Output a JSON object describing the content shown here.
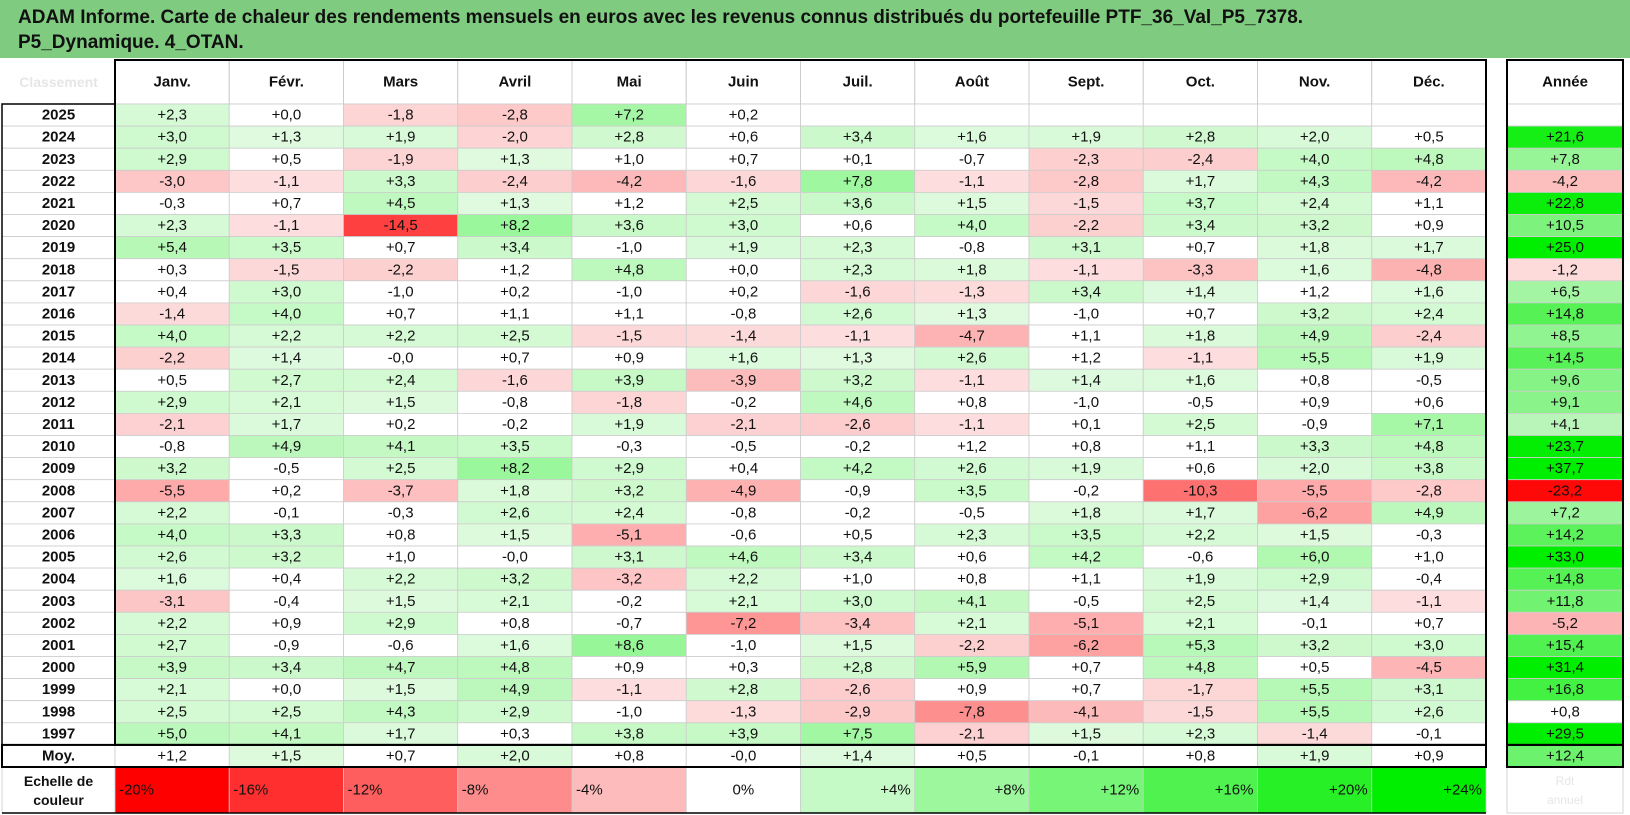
{
  "title_lines": [
    "ADAM Informe. Carte de chaleur des rendements mensuels en euros avec les revenus connus distribués du portefeuille PTF_36_Val_P5_7378.",
    "P5_Dynamique. 4_OTAN."
  ],
  "colors": {
    "title_bg": "#7fcb7f",
    "positive_max": "#00ee00",
    "negative_max": "#ff0000",
    "neutral": "#ffffff"
  },
  "chart_data": {
    "type": "heatmap",
    "corner_label": "Classement",
    "months": [
      "Janv.",
      "Févr.",
      "Mars",
      "Avril",
      "Mai",
      "Juin",
      "Juil.",
      "Août",
      "Sept.",
      "Oct.",
      "Nov.",
      "Déc."
    ],
    "year_header": "Année",
    "rows": [
      {
        "year": "2025",
        "values": [
          "+2,3",
          "+0,0",
          "-1,8",
          "-2,8",
          "+7,2",
          "+0,2",
          "",
          "",
          "",
          "",
          "",
          ""
        ],
        "annual": ""
      },
      {
        "year": "2024",
        "values": [
          "+3,0",
          "+1,3",
          "+1,9",
          "-2,0",
          "+2,8",
          "+0,6",
          "+3,4",
          "+1,6",
          "+1,9",
          "+2,8",
          "+2,0",
          "+0,5"
        ],
        "annual": "+21,6"
      },
      {
        "year": "2023",
        "values": [
          "+2,9",
          "+0,5",
          "-1,9",
          "+1,3",
          "+1,0",
          "+0,7",
          "+0,1",
          "-0,7",
          "-2,3",
          "-2,4",
          "+4,0",
          "+4,8"
        ],
        "annual": "+7,8"
      },
      {
        "year": "2022",
        "values": [
          "-3,0",
          "-1,1",
          "+3,3",
          "-2,4",
          "-4,2",
          "-1,6",
          "+7,8",
          "-1,1",
          "-2,8",
          "+1,7",
          "+4,3",
          "-4,2"
        ],
        "annual": "-4,2"
      },
      {
        "year": "2021",
        "values": [
          "-0,3",
          "+0,7",
          "+4,5",
          "+1,3",
          "+1,2",
          "+2,5",
          "+3,6",
          "+1,5",
          "-1,5",
          "+3,7",
          "+2,4",
          "+1,1"
        ],
        "annual": "+22,8"
      },
      {
        "year": "2020",
        "values": [
          "+2,3",
          "-1,1",
          "-14,5",
          "+8,2",
          "+3,6",
          "+3,0",
          "+0,6",
          "+4,0",
          "-2,2",
          "+3,4",
          "+3,2",
          "+0,9"
        ],
        "annual": "+10,5"
      },
      {
        "year": "2019",
        "values": [
          "+5,4",
          "+3,5",
          "+0,7",
          "+3,4",
          "-1,0",
          "+1,9",
          "+2,3",
          "-0,8",
          "+3,1",
          "+0,7",
          "+1,8",
          "+1,7"
        ],
        "annual": "+25,0"
      },
      {
        "year": "2018",
        "values": [
          "+0,3",
          "-1,5",
          "-2,2",
          "+1,2",
          "+4,8",
          "+0,0",
          "+2,3",
          "+1,8",
          "-1,1",
          "-3,3",
          "+1,6",
          "-4,8"
        ],
        "annual": "-1,2"
      },
      {
        "year": "2017",
        "values": [
          "+0,4",
          "+3,0",
          "-1,0",
          "+0,2",
          "-1,0",
          "+0,2",
          "-1,6",
          "-1,3",
          "+3,4",
          "+1,4",
          "+1,2",
          "+1,6"
        ],
        "annual": "+6,5"
      },
      {
        "year": "2016",
        "values": [
          "-1,4",
          "+4,0",
          "+0,7",
          "+1,1",
          "+1,1",
          "-0,8",
          "+2,6",
          "+1,3",
          "-1,0",
          "+0,7",
          "+3,2",
          "+2,4"
        ],
        "annual": "+14,8"
      },
      {
        "year": "2015",
        "values": [
          "+4,0",
          "+2,2",
          "+2,2",
          "+2,5",
          "-1,5",
          "-1,4",
          "-1,1",
          "-4,7",
          "+1,1",
          "+1,8",
          "+4,9",
          "-2,4"
        ],
        "annual": "+8,5"
      },
      {
        "year": "2014",
        "values": [
          "-2,2",
          "+1,4",
          "-0,0",
          "+0,7",
          "+0,9",
          "+1,6",
          "+1,3",
          "+2,6",
          "+1,2",
          "-1,1",
          "+5,5",
          "+1,9"
        ],
        "annual": "+14,5"
      },
      {
        "year": "2013",
        "values": [
          "+0,5",
          "+2,7",
          "+2,4",
          "-1,6",
          "+3,9",
          "-3,9",
          "+3,2",
          "-1,1",
          "+1,4",
          "+1,6",
          "+0,8",
          "-0,5"
        ],
        "annual": "+9,6"
      },
      {
        "year": "2012",
        "values": [
          "+2,9",
          "+2,1",
          "+1,5",
          "-0,8",
          "-1,8",
          "-0,2",
          "+4,6",
          "+0,8",
          "-1,0",
          "-0,5",
          "+0,9",
          "+0,6"
        ],
        "annual": "+9,1"
      },
      {
        "year": "2011",
        "values": [
          "-2,1",
          "+1,7",
          "+0,2",
          "-0,2",
          "+1,9",
          "-2,1",
          "-2,6",
          "-1,1",
          "+0,1",
          "+2,5",
          "-0,9",
          "+7,1"
        ],
        "annual": "+4,1"
      },
      {
        "year": "2010",
        "values": [
          "-0,8",
          "+4,9",
          "+4,1",
          "+3,5",
          "-0,3",
          "-0,5",
          "-0,2",
          "+1,2",
          "+0,8",
          "+1,1",
          "+3,3",
          "+4,8"
        ],
        "annual": "+23,7"
      },
      {
        "year": "2009",
        "values": [
          "+3,2",
          "-0,5",
          "+2,5",
          "+8,2",
          "+2,9",
          "+0,4",
          "+4,2",
          "+2,6",
          "+1,9",
          "+0,6",
          "+2,0",
          "+3,8"
        ],
        "annual": "+37,7"
      },
      {
        "year": "2008",
        "values": [
          "-5,5",
          "+0,2",
          "-3,7",
          "+1,8",
          "+3,2",
          "-4,9",
          "-0,9",
          "+3,5",
          "-0,2",
          "-10,3",
          "-5,5",
          "-2,8"
        ],
        "annual": "-23,2"
      },
      {
        "year": "2007",
        "values": [
          "+2,2",
          "-0,1",
          "-0,3",
          "+2,6",
          "+2,4",
          "-0,8",
          "-0,2",
          "-0,5",
          "+1,8",
          "+1,7",
          "-6,2",
          "+4,9"
        ],
        "annual": "+7,2"
      },
      {
        "year": "2006",
        "values": [
          "+4,0",
          "+3,3",
          "+0,8",
          "+1,5",
          "-5,1",
          "-0,6",
          "+0,5",
          "+2,3",
          "+3,5",
          "+2,2",
          "+1,5",
          "-0,3"
        ],
        "annual": "+14,2"
      },
      {
        "year": "2005",
        "values": [
          "+2,6",
          "+3,2",
          "+1,0",
          "-0,0",
          "+3,1",
          "+4,6",
          "+3,4",
          "+0,6",
          "+4,2",
          "-0,6",
          "+6,0",
          "+1,0"
        ],
        "annual": "+33,0"
      },
      {
        "year": "2004",
        "values": [
          "+1,6",
          "+0,4",
          "+2,2",
          "+3,2",
          "-3,2",
          "+2,2",
          "+1,0",
          "+0,8",
          "+1,1",
          "+1,9",
          "+2,9",
          "-0,4"
        ],
        "annual": "+14,8"
      },
      {
        "year": "2003",
        "values": [
          "-3,1",
          "-0,4",
          "+1,5",
          "+2,1",
          "-0,2",
          "+2,1",
          "+3,0",
          "+4,1",
          "-0,5",
          "+2,5",
          "+1,4",
          "-1,1"
        ],
        "annual": "+11,8"
      },
      {
        "year": "2002",
        "values": [
          "+2,2",
          "+0,9",
          "+2,9",
          "+0,8",
          "-0,7",
          "-7,2",
          "-3,4",
          "+2,1",
          "-5,1",
          "+2,1",
          "-0,1",
          "+0,7"
        ],
        "annual": "-5,2"
      },
      {
        "year": "2001",
        "values": [
          "+2,7",
          "-0,9",
          "-0,6",
          "+1,6",
          "+8,6",
          "-1,0",
          "+1,5",
          "-2,2",
          "-6,2",
          "+5,3",
          "+3,2",
          "+3,0"
        ],
        "annual": "+15,4"
      },
      {
        "year": "2000",
        "values": [
          "+3,9",
          "+3,4",
          "+4,7",
          "+4,8",
          "+0,9",
          "+0,3",
          "+2,8",
          "+5,9",
          "+0,7",
          "+4,8",
          "+0,5",
          "-4,5"
        ],
        "annual": "+31,4"
      },
      {
        "year": "1999",
        "values": [
          "+2,1",
          "+0,0",
          "+1,5",
          "+4,9",
          "-1,1",
          "+2,8",
          "-2,6",
          "+0,9",
          "+0,7",
          "-1,7",
          "+5,5",
          "+3,1"
        ],
        "annual": "+16,8"
      },
      {
        "year": "1998",
        "values": [
          "+2,5",
          "+2,5",
          "+4,3",
          "+2,9",
          "-1,0",
          "-1,3",
          "-2,9",
          "-7,8",
          "-4,1",
          "-1,5",
          "+5,5",
          "+2,6"
        ],
        "annual": "+0,8"
      },
      {
        "year": "1997",
        "values": [
          "+5,0",
          "+4,1",
          "+1,7",
          "+0,3",
          "+3,8",
          "+3,9",
          "+7,5",
          "-2,1",
          "+1,5",
          "+2,3",
          "-1,4",
          "-0,1"
        ],
        "annual": "+29,5"
      }
    ],
    "average_row": {
      "label": "Moy.",
      "values": [
        "+1,2",
        "+1,5",
        "+0,7",
        "+2,0",
        "+0,8",
        "-0,0",
        "+1,4",
        "+0,5",
        "-0,1",
        "+0,8",
        "+1,9",
        "+0,9"
      ],
      "annual": "+12,4"
    },
    "scale": {
      "label_lines": [
        "Echelle de",
        "couleur"
      ],
      "steps": [
        "-20%",
        "-16%",
        "-12%",
        "-8%",
        "-4%",
        "0%",
        "+4%",
        "+8%",
        "+12%",
        "+16%",
        "+20%",
        "+24%"
      ],
      "year_scale_lines": [
        "Rdt",
        "annuel"
      ]
    }
  }
}
